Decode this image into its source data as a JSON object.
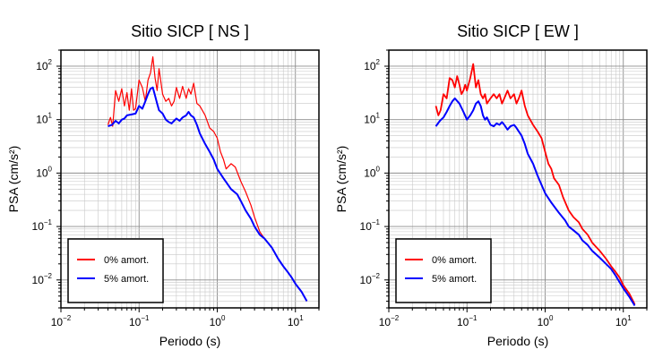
{
  "chart_data": [
    {
      "type": "line",
      "title": "Sitio SICP [ NS ]",
      "xlabel": "Periodo (s)",
      "ylabel": "PSA (cm/s²)",
      "xscale": "log",
      "yscale": "log",
      "xlim": [
        0.01,
        20
      ],
      "ylim": [
        0.003,
        200
      ],
      "grid": true,
      "legend_position": "bottom-left",
      "x_ticks": [
        {
          "value": 0.01,
          "base": "10",
          "exp": "−2"
        },
        {
          "value": 0.1,
          "base": "10",
          "exp": "−1"
        },
        {
          "value": 1,
          "base": "10",
          "exp": "0"
        },
        {
          "value": 10,
          "base": "10",
          "exp": "1"
        }
      ],
      "y_ticks": [
        {
          "value": 0.01,
          "base": "10",
          "exp": "−2"
        },
        {
          "value": 0.1,
          "base": "10",
          "exp": "−1"
        },
        {
          "value": 1,
          "base": "10",
          "exp": "0"
        },
        {
          "value": 10,
          "base": "10",
          "exp": "1"
        },
        {
          "value": 100,
          "base": "10",
          "exp": "2"
        }
      ],
      "series": [
        {
          "name": "0% amort.",
          "color": "#ff0000",
          "x": [
            0.04,
            0.043,
            0.046,
            0.05,
            0.055,
            0.06,
            0.065,
            0.07,
            0.075,
            0.08,
            0.085,
            0.09,
            0.095,
            0.1,
            0.11,
            0.12,
            0.13,
            0.14,
            0.15,
            0.16,
            0.17,
            0.18,
            0.2,
            0.22,
            0.24,
            0.26,
            0.28,
            0.3,
            0.33,
            0.36,
            0.4,
            0.43,
            0.46,
            0.5,
            0.55,
            0.6,
            0.7,
            0.8,
            0.9,
            1.0,
            1.1,
            1.2,
            1.3,
            1.5,
            1.7,
            2.0,
            2.3,
            2.7,
            3.0,
            3.5,
            4.0,
            5.0,
            6.0,
            7.0,
            8.0,
            9.0,
            10,
            12,
            14
          ],
          "y": [
            8,
            11,
            7.5,
            35,
            22,
            38,
            18,
            32,
            15,
            38,
            15,
            16,
            30,
            55,
            40,
            22,
            55,
            75,
            150,
            60,
            35,
            90,
            30,
            22,
            25,
            18,
            22,
            40,
            25,
            42,
            25,
            38,
            30,
            48,
            20,
            18,
            12,
            7,
            6,
            4.5,
            2.5,
            1.8,
            1.2,
            1.5,
            1.3,
            0.7,
            0.45,
            0.25,
            0.15,
            0.08,
            0.06,
            0.04,
            0.025,
            0.018,
            0.014,
            0.011,
            0.0085,
            0.006,
            0.004
          ]
        },
        {
          "name": "5% amort.",
          "color": "#0000ff",
          "x": [
            0.04,
            0.045,
            0.05,
            0.055,
            0.06,
            0.065,
            0.07,
            0.08,
            0.09,
            0.1,
            0.11,
            0.12,
            0.13,
            0.14,
            0.15,
            0.16,
            0.17,
            0.18,
            0.2,
            0.22,
            0.24,
            0.26,
            0.28,
            0.3,
            0.33,
            0.36,
            0.4,
            0.43,
            0.46,
            0.5,
            0.55,
            0.6,
            0.7,
            0.8,
            0.9,
            1.0,
            1.2,
            1.5,
            1.8,
            2.0,
            2.3,
            2.7,
            3.0,
            3.5,
            4.0,
            5.0,
            6.0,
            7.0,
            8.0,
            9.0,
            10,
            12,
            14
          ],
          "y": [
            7.5,
            8,
            9.5,
            8.5,
            10,
            10.5,
            12,
            12.5,
            13,
            18,
            16,
            22,
            30,
            38,
            40,
            28,
            20,
            15,
            13,
            10,
            9,
            8.5,
            9.5,
            10.5,
            9.5,
            11,
            12,
            14,
            12,
            11,
            8,
            5.5,
            3.5,
            2.5,
            1.8,
            1.2,
            0.8,
            0.5,
            0.4,
            0.3,
            0.2,
            0.14,
            0.1,
            0.07,
            0.06,
            0.04,
            0.025,
            0.018,
            0.014,
            0.011,
            0.0085,
            0.006,
            0.004
          ]
        }
      ]
    },
    {
      "type": "line",
      "title": "Sitio SICP [ EW ]",
      "xlabel": "Periodo (s)",
      "ylabel": "PSA (cm/s²)",
      "xscale": "log",
      "yscale": "log",
      "xlim": [
        0.01,
        20
      ],
      "ylim": [
        0.003,
        200
      ],
      "grid": true,
      "legend_position": "bottom-left",
      "x_ticks": [
        {
          "value": 0.01,
          "base": "10",
          "exp": "−2"
        },
        {
          "value": 0.1,
          "base": "10",
          "exp": "−1"
        },
        {
          "value": 1,
          "base": "10",
          "exp": "0"
        },
        {
          "value": 10,
          "base": "10",
          "exp": "1"
        }
      ],
      "y_ticks": [
        {
          "value": 0.01,
          "base": "10",
          "exp": "−2"
        },
        {
          "value": 0.1,
          "base": "10",
          "exp": "−1"
        },
        {
          "value": 1,
          "base": "10",
          "exp": "0"
        },
        {
          "value": 10,
          "base": "10",
          "exp": "1"
        },
        {
          "value": 100,
          "base": "10",
          "exp": "2"
        }
      ],
      "series": [
        {
          "name": "0% amort.",
          "color": "#ff0000",
          "x": [
            0.04,
            0.043,
            0.046,
            0.05,
            0.055,
            0.06,
            0.065,
            0.07,
            0.075,
            0.08,
            0.085,
            0.09,
            0.095,
            0.1,
            0.11,
            0.12,
            0.13,
            0.14,
            0.15,
            0.16,
            0.17,
            0.18,
            0.2,
            0.22,
            0.24,
            0.26,
            0.28,
            0.3,
            0.33,
            0.36,
            0.4,
            0.43,
            0.46,
            0.5,
            0.55,
            0.6,
            0.7,
            0.8,
            0.9,
            1.0,
            1.1,
            1.2,
            1.3,
            1.5,
            1.7,
            2.0,
            2.3,
            2.7,
            3.0,
            3.5,
            4.0,
            5.0,
            6.0,
            7.0,
            8.0,
            9.0,
            10,
            12,
            14
          ],
          "y": [
            18,
            12,
            15,
            30,
            25,
            60,
            55,
            40,
            65,
            45,
            30,
            35,
            45,
            35,
            60,
            110,
            40,
            55,
            30,
            25,
            30,
            20,
            25,
            30,
            25,
            30,
            20,
            25,
            35,
            25,
            30,
            20,
            25,
            35,
            18,
            12,
            8,
            6,
            4.5,
            2.5,
            1.5,
            1.2,
            0.8,
            0.6,
            0.35,
            0.2,
            0.15,
            0.12,
            0.09,
            0.07,
            0.05,
            0.035,
            0.025,
            0.018,
            0.014,
            0.011,
            0.008,
            0.0055,
            0.0035
          ]
        },
        {
          "name": "5% amort.",
          "color": "#0000ff",
          "x": [
            0.04,
            0.045,
            0.05,
            0.055,
            0.06,
            0.065,
            0.07,
            0.08,
            0.09,
            0.1,
            0.11,
            0.12,
            0.13,
            0.14,
            0.15,
            0.16,
            0.17,
            0.18,
            0.2,
            0.22,
            0.24,
            0.26,
            0.28,
            0.3,
            0.33,
            0.36,
            0.4,
            0.43,
            0.46,
            0.5,
            0.55,
            0.6,
            0.7,
            0.8,
            0.9,
            1.0,
            1.2,
            1.5,
            1.8,
            2.0,
            2.3,
            2.7,
            3.0,
            3.5,
            4.0,
            5.0,
            6.0,
            7.0,
            8.0,
            9.0,
            10,
            12,
            14
          ],
          "y": [
            7.5,
            9.5,
            11,
            14,
            18,
            22,
            25,
            20,
            14,
            10,
            12,
            15,
            20,
            22,
            18,
            12,
            10,
            11,
            8,
            7.5,
            8.5,
            8,
            9,
            8,
            6.5,
            7.5,
            8,
            7,
            6,
            5,
            3.5,
            2.3,
            1.5,
            0.9,
            0.6,
            0.42,
            0.28,
            0.18,
            0.13,
            0.1,
            0.085,
            0.07,
            0.055,
            0.045,
            0.035,
            0.026,
            0.02,
            0.016,
            0.012,
            0.009,
            0.007,
            0.0048,
            0.0033
          ]
        }
      ]
    }
  ]
}
